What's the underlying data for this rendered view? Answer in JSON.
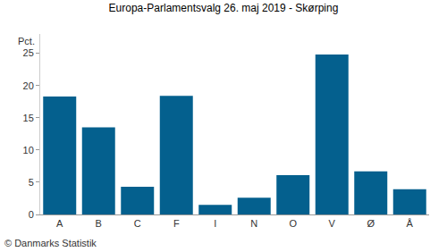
{
  "chart_data": {
    "type": "bar",
    "title": "Europa-Parlamentsvalg 26. maj 2019 - Skørping",
    "ylabel": "Pct.",
    "source": "© Danmarks Statistik",
    "categories": [
      "A",
      "B",
      "C",
      "F",
      "I",
      "N",
      "O",
      "V",
      "Ø",
      "Å"
    ],
    "values": [
      18.3,
      13.5,
      4.3,
      18.4,
      1.5,
      2.6,
      6.1,
      24.8,
      6.7,
      3.9
    ],
    "color": "#04608e",
    "ylim": [
      0,
      28
    ],
    "yticks": [
      0,
      5,
      10,
      15,
      20,
      25
    ],
    "grid": false
  }
}
